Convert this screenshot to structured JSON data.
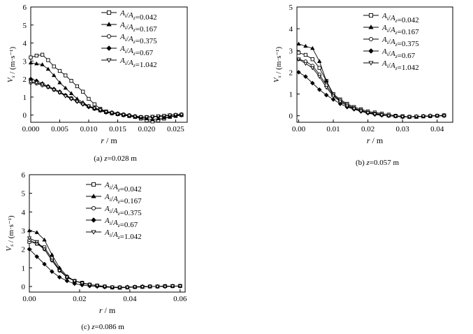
{
  "chart_data": [
    {
      "type": "line",
      "caption": "(a) z=0.028 m",
      "xlabel": "r / m",
      "ylabel": "V_s / (m·s⁻¹)",
      "xlim": [
        0,
        0.027
      ],
      "ylim": [
        -0.4,
        6
      ],
      "xticks": [
        "0.000",
        "0.005",
        "0.010",
        "0.015",
        "0.020",
        "0.025"
      ],
      "xtick_values": [
        0,
        0.005,
        0.01,
        0.015,
        0.02,
        0.025
      ],
      "yticks": [
        "0",
        "1",
        "2",
        "3",
        "4",
        "5",
        "6"
      ],
      "ytick_values": [
        0,
        1,
        2,
        3,
        4,
        5,
        6
      ],
      "grid": false,
      "legend_position": "top-right",
      "series": [
        {
          "name": "A_i/A_z=0.042",
          "marker": "square-open",
          "x": [
            0,
            0.001,
            0.002,
            0.003,
            0.004,
            0.005,
            0.006,
            0.007,
            0.008,
            0.009,
            0.01,
            0.011,
            0.012,
            0.013,
            0.014,
            0.015,
            0.016,
            0.017,
            0.018,
            0.019,
            0.02,
            0.021,
            0.022,
            0.023,
            0.024,
            0.025,
            0.026
          ],
          "y": [
            3.2,
            3.3,
            3.35,
            3.05,
            2.7,
            2.45,
            2.2,
            1.9,
            1.6,
            1.3,
            0.9,
            0.6,
            0.35,
            0.2,
            0.1,
            0.05,
            0.0,
            -0.05,
            -0.1,
            -0.2,
            -0.3,
            -0.35,
            -0.3,
            -0.2,
            -0.1,
            -0.05,
            0.0
          ]
        },
        {
          "name": "A_i/A_z=0.167",
          "marker": "triangle-filled",
          "x": [
            0,
            0.001,
            0.002,
            0.003,
            0.004,
            0.005,
            0.006,
            0.007,
            0.008,
            0.009,
            0.01,
            0.011,
            0.012,
            0.013,
            0.014,
            0.015,
            0.016,
            0.017,
            0.018,
            0.019,
            0.02,
            0.021,
            0.022,
            0.023,
            0.024,
            0.025,
            0.026
          ],
          "y": [
            2.9,
            2.85,
            2.8,
            2.55,
            2.2,
            1.8,
            1.5,
            1.2,
            0.9,
            0.7,
            0.5,
            0.35,
            0.25,
            0.15,
            0.1,
            0.05,
            0.0,
            -0.05,
            -0.1,
            -0.15,
            -0.2,
            -0.25,
            -0.2,
            -0.15,
            -0.1,
            -0.05,
            0.0
          ]
        },
        {
          "name": "A_i/A_z=0.375",
          "marker": "circle-open",
          "x": [
            0,
            0.001,
            0.002,
            0.003,
            0.004,
            0.005,
            0.006,
            0.007,
            0.008,
            0.009,
            0.01,
            0.011,
            0.012,
            0.013,
            0.014,
            0.015,
            0.016,
            0.017,
            0.018,
            0.019,
            0.02,
            0.021,
            0.022,
            0.023,
            0.024,
            0.025,
            0.026
          ],
          "y": [
            1.8,
            1.75,
            1.65,
            1.55,
            1.4,
            1.25,
            1.1,
            0.95,
            0.8,
            0.65,
            0.5,
            0.4,
            0.3,
            0.2,
            0.15,
            0.1,
            0.05,
            0.0,
            -0.05,
            -0.1,
            -0.12,
            -0.1,
            -0.08,
            -0.05,
            0.0,
            0.02,
            0.05
          ]
        },
        {
          "name": "A_i/A_z=0.67",
          "marker": "diamond-filled",
          "x": [
            0,
            0.001,
            0.002,
            0.003,
            0.004,
            0.005,
            0.006,
            0.007,
            0.008,
            0.009,
            0.01,
            0.011,
            0.012,
            0.013,
            0.014,
            0.015,
            0.016,
            0.017,
            0.018,
            0.019,
            0.02,
            0.021,
            0.022,
            0.023,
            0.024,
            0.025,
            0.026
          ],
          "y": [
            2.0,
            1.9,
            1.75,
            1.6,
            1.45,
            1.3,
            1.1,
            0.9,
            0.75,
            0.6,
            0.45,
            0.35,
            0.25,
            0.15,
            0.1,
            0.05,
            0.0,
            -0.05,
            -0.1,
            -0.12,
            -0.12,
            -0.1,
            -0.08,
            -0.05,
            -0.02,
            0.0,
            0.0
          ]
        },
        {
          "name": "A_i/A_z=1.042",
          "marker": "triangle-down-open",
          "x": [
            0,
            0.001,
            0.002,
            0.003,
            0.004,
            0.005,
            0.006,
            0.007,
            0.008,
            0.009,
            0.01,
            0.011,
            0.012,
            0.013,
            0.014,
            0.015,
            0.016,
            0.017,
            0.018,
            0.019,
            0.02,
            0.021,
            0.022,
            0.023,
            0.024,
            0.025,
            0.026
          ],
          "y": [
            1.85,
            1.8,
            1.7,
            1.55,
            1.4,
            1.25,
            1.05,
            0.9,
            0.75,
            0.6,
            0.5,
            0.38,
            0.28,
            0.18,
            0.12,
            0.06,
            0.02,
            -0.03,
            -0.08,
            -0.1,
            -0.1,
            -0.08,
            -0.05,
            -0.03,
            0.0,
            0.02,
            0.03
          ]
        }
      ]
    },
    {
      "type": "line",
      "caption": "(b) z=0.057 m",
      "xlabel": "r / m",
      "ylabel": "V_s / (m·s⁻¹)",
      "xlim": [
        -0.0005,
        0.0445
      ],
      "ylim": [
        -0.3,
        5
      ],
      "xticks": [
        "0.00",
        "0.01",
        "0.02",
        "0.03",
        "0.04"
      ],
      "xtick_values": [
        0,
        0.01,
        0.02,
        0.03,
        0.04
      ],
      "yticks": [
        "0",
        "1",
        "2",
        "3",
        "4",
        "5"
      ],
      "ytick_values": [
        0,
        1,
        2,
        3,
        4,
        5
      ],
      "grid": false,
      "legend_position": "top-right",
      "series": [
        {
          "name": "A_i/A_z=0.042",
          "marker": "square-open",
          "x": [
            0,
            0.002,
            0.004,
            0.006,
            0.008,
            0.01,
            0.012,
            0.014,
            0.016,
            0.018,
            0.02,
            0.022,
            0.024,
            0.026,
            0.028,
            0.03,
            0.032,
            0.034,
            0.036,
            0.038,
            0.04,
            0.042
          ],
          "y": [
            2.9,
            2.8,
            2.6,
            2.2,
            1.6,
            1.0,
            0.75,
            0.55,
            0.4,
            0.3,
            0.2,
            0.15,
            0.1,
            0.05,
            0.0,
            -0.02,
            -0.05,
            -0.05,
            -0.03,
            -0.02,
            0.0,
            0.02
          ]
        },
        {
          "name": "A_i/A_z=0.167",
          "marker": "triangle-filled",
          "x": [
            0,
            0.002,
            0.004,
            0.006,
            0.008,
            0.01,
            0.012,
            0.014,
            0.016,
            0.018,
            0.02,
            0.022,
            0.024,
            0.026,
            0.028,
            0.03,
            0.032,
            0.034,
            0.036,
            0.038,
            0.04,
            0.042
          ],
          "y": [
            3.3,
            3.2,
            3.1,
            2.5,
            1.6,
            0.95,
            0.7,
            0.5,
            0.35,
            0.25,
            0.15,
            0.1,
            0.05,
            0.0,
            -0.03,
            -0.05,
            -0.05,
            -0.05,
            -0.03,
            0.0,
            0.0,
            0.02
          ]
        },
        {
          "name": "A_i/A_z=0.375",
          "marker": "circle-open",
          "x": [
            0,
            0.002,
            0.004,
            0.006,
            0.008,
            0.01,
            0.012,
            0.014,
            0.016,
            0.018,
            0.02,
            0.022,
            0.024,
            0.026,
            0.028,
            0.03,
            0.032,
            0.034,
            0.036,
            0.038,
            0.04,
            0.042
          ],
          "y": [
            2.6,
            2.5,
            2.3,
            1.9,
            1.4,
            0.95,
            0.7,
            0.5,
            0.35,
            0.25,
            0.15,
            0.1,
            0.05,
            0.0,
            -0.02,
            -0.05,
            -0.05,
            -0.03,
            -0.02,
            0.0,
            0.0,
            0.0
          ]
        },
        {
          "name": "A_i/A_z=0.67",
          "marker": "diamond-filled",
          "x": [
            0,
            0.002,
            0.004,
            0.006,
            0.008,
            0.01,
            0.012,
            0.014,
            0.016,
            0.018,
            0.02,
            0.022,
            0.024,
            0.026,
            0.028,
            0.03,
            0.032,
            0.034,
            0.036,
            0.038,
            0.04,
            0.042
          ],
          "y": [
            2.0,
            1.8,
            1.5,
            1.2,
            0.95,
            0.75,
            0.55,
            0.4,
            0.3,
            0.2,
            0.12,
            0.06,
            0.02,
            0.0,
            -0.02,
            -0.05,
            -0.05,
            -0.03,
            -0.02,
            0.0,
            0.0,
            0.0
          ]
        },
        {
          "name": "A_i/A_z=1.042",
          "marker": "triangle-down-open",
          "x": [
            0,
            0.002,
            0.004,
            0.006,
            0.008,
            0.01,
            0.012,
            0.014,
            0.016,
            0.018,
            0.02,
            0.022,
            0.024,
            0.026,
            0.028,
            0.03,
            0.032,
            0.034,
            0.036,
            0.038,
            0.04,
            0.042
          ],
          "y": [
            2.6,
            2.4,
            2.2,
            1.8,
            1.3,
            0.9,
            0.65,
            0.45,
            0.32,
            0.22,
            0.14,
            0.08,
            0.04,
            0.0,
            -0.02,
            -0.04,
            -0.05,
            -0.03,
            -0.02,
            0.0,
            0.0,
            0.0
          ]
        }
      ]
    },
    {
      "type": "line",
      "caption": "(c) z=0.086 m",
      "xlabel": "r / m",
      "ylabel": "V_s / (m·s⁻¹)",
      "xlim": [
        0,
        0.062
      ],
      "ylim": [
        -0.3,
        6
      ],
      "xticks": [
        "0.00",
        "0.02",
        "0.04",
        "0.06"
      ],
      "xtick_values": [
        0,
        0.02,
        0.04,
        0.06
      ],
      "yticks": [
        "0",
        "1",
        "2",
        "3",
        "4",
        "5",
        "6"
      ],
      "ytick_values": [
        0,
        1,
        2,
        3,
        4,
        5,
        6
      ],
      "grid": false,
      "legend_position": "top-right",
      "series": [
        {
          "name": "A_i/A_z=0.042",
          "marker": "square-open",
          "x": [
            0,
            0.003,
            0.006,
            0.009,
            0.012,
            0.015,
            0.018,
            0.021,
            0.024,
            0.027,
            0.03,
            0.033,
            0.036,
            0.039,
            0.042,
            0.045,
            0.048,
            0.051,
            0.054,
            0.057,
            0.06
          ],
          "y": [
            2.4,
            2.3,
            2.1,
            1.5,
            0.9,
            0.5,
            0.3,
            0.2,
            0.1,
            0.05,
            0.0,
            -0.05,
            -0.05,
            -0.05,
            -0.03,
            -0.02,
            0.0,
            0.0,
            0.02,
            0.02,
            0.03
          ]
        },
        {
          "name": "A_i/A_z=0.167",
          "marker": "triangle-filled",
          "x": [
            0,
            0.003,
            0.006,
            0.009,
            0.012,
            0.015,
            0.018,
            0.021,
            0.024,
            0.027,
            0.03,
            0.033,
            0.036,
            0.039,
            0.042,
            0.045,
            0.048,
            0.051,
            0.054,
            0.057,
            0.06
          ],
          "y": [
            3.0,
            2.9,
            2.5,
            1.7,
            1.0,
            0.55,
            0.3,
            0.2,
            0.1,
            0.05,
            0.0,
            -0.05,
            -0.08,
            -0.05,
            -0.03,
            -0.02,
            0.0,
            0.0,
            0.02,
            0.02,
            0.02
          ]
        },
        {
          "name": "A_i/A_z=0.375",
          "marker": "circle-open",
          "x": [
            0,
            0.003,
            0.006,
            0.009,
            0.012,
            0.015,
            0.018,
            0.021,
            0.024,
            0.027,
            0.03,
            0.033,
            0.036,
            0.039,
            0.042,
            0.045,
            0.048,
            0.051,
            0.054,
            0.057,
            0.06
          ],
          "y": [
            2.5,
            2.3,
            2.0,
            1.4,
            0.85,
            0.5,
            0.3,
            0.18,
            0.1,
            0.05,
            0.0,
            -0.03,
            -0.05,
            -0.05,
            -0.03,
            -0.02,
            0.0,
            0.0,
            0.0,
            0.02,
            0.02
          ]
        },
        {
          "name": "A_i/A_z=0.67",
          "marker": "diamond-filled",
          "x": [
            0,
            0.003,
            0.006,
            0.009,
            0.012,
            0.015,
            0.018,
            0.021,
            0.024,
            0.027,
            0.03,
            0.033,
            0.036,
            0.039,
            0.042,
            0.045,
            0.048,
            0.051,
            0.054,
            0.057,
            0.06
          ],
          "y": [
            2.0,
            1.6,
            1.2,
            0.8,
            0.5,
            0.3,
            0.15,
            0.08,
            0.03,
            0.0,
            -0.03,
            -0.05,
            -0.05,
            -0.03,
            -0.02,
            0.0,
            0.0,
            0.0,
            0.0,
            0.02,
            0.02
          ]
        },
        {
          "name": "A_i/A_z=1.042",
          "marker": "triangle-down-open",
          "x": [
            0,
            0.003,
            0.006,
            0.009,
            0.012,
            0.015,
            0.018,
            0.021,
            0.024,
            0.027,
            0.03,
            0.033,
            0.036,
            0.039,
            0.042,
            0.045,
            0.048,
            0.051,
            0.054,
            0.057,
            0.06
          ],
          "y": [
            2.6,
            2.4,
            2.0,
            1.4,
            0.85,
            0.5,
            0.3,
            0.18,
            0.1,
            0.05,
            0.0,
            -0.03,
            -0.05,
            -0.05,
            -0.03,
            -0.02,
            0.0,
            0.0,
            0.0,
            0.02,
            0.02
          ]
        }
      ]
    }
  ]
}
